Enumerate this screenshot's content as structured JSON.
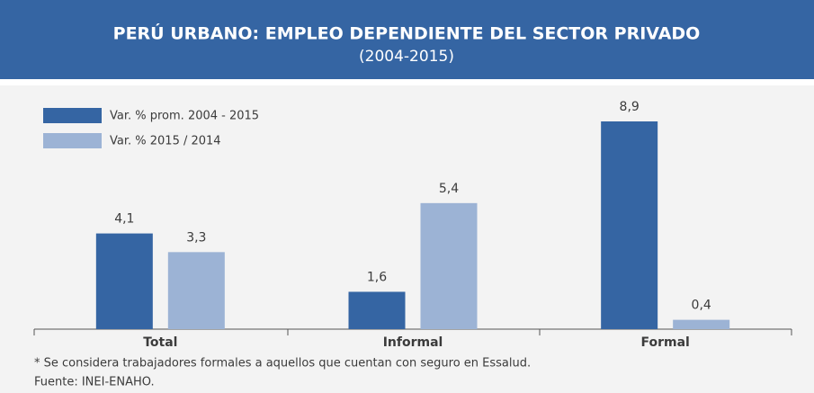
{
  "chart_data": {
    "type": "bar",
    "title": "PERÚ URBANO: EMPLEO DEPENDIENTE DEL SECTOR PRIVADO",
    "subtitle": "(2004-2015)",
    "categories": [
      "Total",
      "Informal",
      "Formal"
    ],
    "series": [
      {
        "name": "Var. % prom. 2004 - 2015",
        "color": "#3565a3",
        "values": [
          4.1,
          1.6,
          8.9
        ],
        "value_labels": [
          "4,1",
          "1,6",
          "8,9"
        ]
      },
      {
        "name": "Var. % 2015 / 2014",
        "color": "#9cb3d5",
        "values": [
          3.3,
          5.4,
          0.4
        ],
        "value_labels": [
          "3,3",
          "5,4",
          "0,4"
        ]
      }
    ],
    "legend": "top-left",
    "footnote": "* Se considera trabajadores formales a aquellos que cuentan con seguro en Essalud.",
    "source": "Fuente: INEI-ENAHO."
  }
}
